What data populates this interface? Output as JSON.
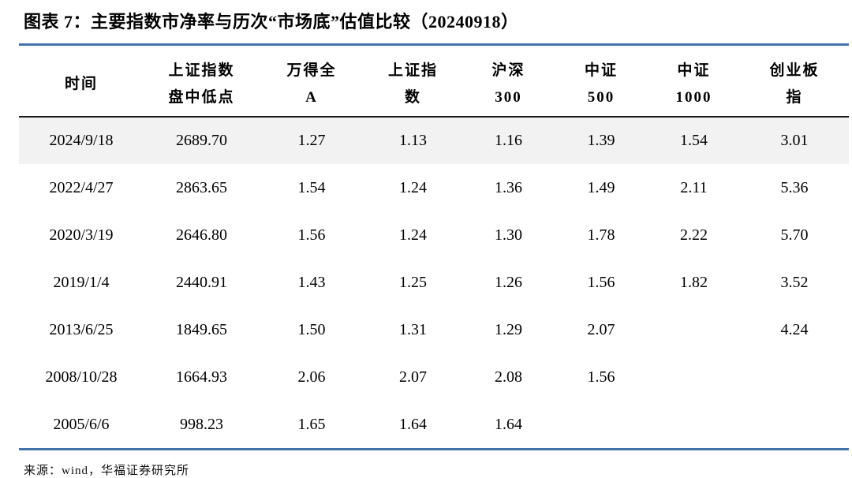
{
  "title": "图表 7：主要指数市净率与历次“市场底”估值比较（20240918）",
  "source": "来源：wind，华福证券研究所",
  "colors": {
    "accent_blue": "#4472A8",
    "highlight_row_bg": "#F2F2F2",
    "header_rule": "#1A1A1A",
    "text": "#000000"
  },
  "chart_data": {
    "type": "table",
    "title": "图表 7：主要指数市净率与历次“市场底”估值比较（20240918）",
    "columns": [
      {
        "label": "时间",
        "lines": [
          "时间"
        ]
      },
      {
        "label": "上证指数盘中低点",
        "lines": [
          "上证指数",
          "盘中低点"
        ]
      },
      {
        "label": "万得全A",
        "lines": [
          "万得全",
          "A"
        ]
      },
      {
        "label": "上证指数",
        "lines": [
          "上证指",
          "数"
        ]
      },
      {
        "label": "沪深300",
        "lines": [
          "沪深",
          "300"
        ]
      },
      {
        "label": "中证500",
        "lines": [
          "中证",
          "500"
        ]
      },
      {
        "label": "中证1000",
        "lines": [
          "中证",
          "1000"
        ]
      },
      {
        "label": "创业板指",
        "lines": [
          "创业板",
          "指"
        ]
      }
    ],
    "rows": [
      [
        "2024/9/18",
        "2689.70",
        "1.27",
        "1.13",
        "1.16",
        "1.39",
        "1.54",
        "3.01"
      ],
      [
        "2022/4/27",
        "2863.65",
        "1.54",
        "1.24",
        "1.36",
        "1.49",
        "2.11",
        "5.36"
      ],
      [
        "2020/3/19",
        "2646.80",
        "1.56",
        "1.24",
        "1.30",
        "1.78",
        "2.22",
        "5.70"
      ],
      [
        "2019/1/4",
        "2440.91",
        "1.43",
        "1.25",
        "1.26",
        "1.56",
        "1.82",
        "3.52"
      ],
      [
        "2013/6/25",
        "1849.65",
        "1.50",
        "1.31",
        "1.29",
        "2.07",
        "",
        "4.24"
      ],
      [
        "2008/10/28",
        "1664.93",
        "2.06",
        "2.07",
        "2.08",
        "1.56",
        "",
        ""
      ],
      [
        "2005/6/6",
        "998.23",
        "1.65",
        "1.64",
        "1.64",
        "",
        "",
        ""
      ]
    ],
    "highlight_row_index": 0,
    "legend_position": "none",
    "grid": false
  }
}
